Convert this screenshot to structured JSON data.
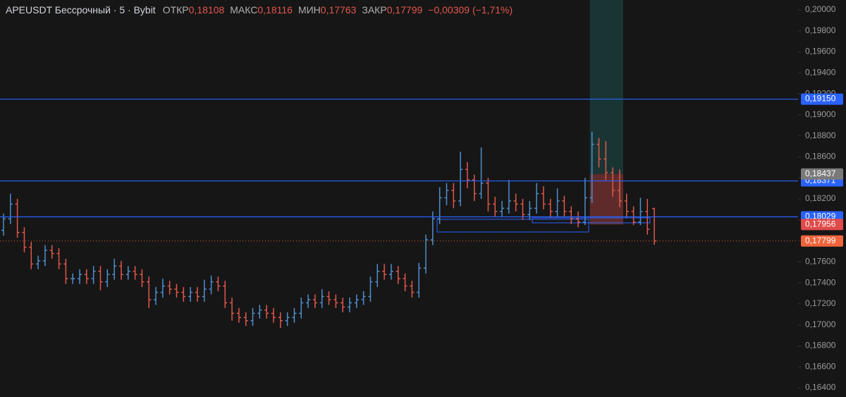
{
  "chart_data": {
    "type": "ohlc",
    "header": {
      "symbol": "APEUSDT Бессрочный · 5 · Bybit",
      "fields": [
        {
          "name": "ОТКР",
          "value": 0.18108,
          "label": "0,18108"
        },
        {
          "name": "МАКС",
          "value": 0.18116,
          "label": "0,18116"
        },
        {
          "name": "МИН",
          "value": 0.17763,
          "label": "0,17763"
        },
        {
          "name": "ЗАКР",
          "value": 0.17799,
          "label": "0,17799"
        }
      ],
      "change": {
        "value": -0.00309,
        "label": "−0,00309 (−1,71%)"
      }
    },
    "up_color": "#4f8fcf",
    "down_color": "#e2574c",
    "ylim": [
      0.16313,
      0.20094
    ],
    "yticks": [
      {
        "value": 0.164,
        "label": "0,16400"
      },
      {
        "value": 0.166,
        "label": "0,16600"
      },
      {
        "value": 0.168,
        "label": "0,16800"
      },
      {
        "value": 0.17,
        "label": "0,17000"
      },
      {
        "value": 0.172,
        "label": "0,17200"
      },
      {
        "value": 0.174,
        "label": "0,17400"
      },
      {
        "value": 0.176,
        "label": "0,17600"
      },
      {
        "value": 0.178,
        "label": "0,17800"
      },
      {
        "value": 0.18,
        "label": "0,18000"
      },
      {
        "value": 0.182,
        "label": "0,18200"
      },
      {
        "value": 0.184,
        "label": "0,18400"
      },
      {
        "value": 0.186,
        "label": "0,18600"
      },
      {
        "value": 0.188,
        "label": "0,18800"
      },
      {
        "value": 0.19,
        "label": "0,19000"
      },
      {
        "value": 0.192,
        "label": "0,19200"
      },
      {
        "value": 0.194,
        "label": "0,19400"
      },
      {
        "value": 0.196,
        "label": "0,19600"
      },
      {
        "value": 0.198,
        "label": "0,19800"
      },
      {
        "value": 0.2,
        "label": "0,20000"
      }
    ],
    "open": [
      0.179,
      0.1801,
      0.1815,
      0.1788,
      0.1774,
      0.1758,
      0.1761,
      0.1771,
      0.1768,
      0.1758,
      0.1744,
      0.1744,
      0.1748,
      0.1744,
      0.1751,
      0.1741,
      0.1748,
      0.1756,
      0.1748,
      0.1751,
      0.1748,
      0.1741,
      0.1724,
      0.1731,
      0.1737,
      0.1734,
      0.1731,
      0.1727,
      0.1731,
      0.1727,
      0.1734,
      0.1741,
      0.1737,
      0.1721,
      0.1711,
      0.1707,
      0.1704,
      0.1711,
      0.1714,
      0.1711,
      0.1707,
      0.1704,
      0.1707,
      0.1711,
      0.1721,
      0.1724,
      0.1721,
      0.1727,
      0.1724,
      0.1721,
      0.1717,
      0.1721,
      0.1724,
      0.1727,
      0.1741,
      0.1751,
      0.1748,
      0.1751,
      0.1744,
      0.1737,
      0.1731,
      0.1754,
      0.1781,
      0.1801,
      0.1821,
      0.1828,
      0.1818,
      0.1848,
      0.1838,
      0.1825,
      0.1835,
      0.1815,
      0.1808,
      0.1811,
      0.1818,
      0.1815,
      0.1805,
      0.1811,
      0.1825,
      0.1815,
      0.1808,
      0.1818,
      0.1808,
      0.1801,
      0.1798,
      0.1821,
      0.1872,
      0.1858,
      0.1845,
      0.1828,
      0.1818,
      0.1808,
      0.1798,
      0.1808,
      0.18108
    ],
    "high": [
      0.1806,
      0.1825,
      0.182,
      0.1793,
      0.1779,
      0.1766,
      0.1776,
      0.1776,
      0.1773,
      0.1763,
      0.1749,
      0.1753,
      0.1753,
      0.1756,
      0.1756,
      0.1753,
      0.1763,
      0.1761,
      0.1756,
      0.1756,
      0.1753,
      0.1746,
      0.1736,
      0.1744,
      0.1742,
      0.1739,
      0.1736,
      0.1736,
      0.1736,
      0.1743,
      0.1747,
      0.1746,
      0.1742,
      0.1726,
      0.1716,
      0.1712,
      0.1716,
      0.1719,
      0.1719,
      0.1716,
      0.1712,
      0.1712,
      0.1716,
      0.1726,
      0.1729,
      0.1729,
      0.1734,
      0.1732,
      0.1729,
      0.1726,
      0.1726,
      0.1729,
      0.1732,
      0.1746,
      0.1758,
      0.1758,
      0.1758,
      0.1756,
      0.1749,
      0.1742,
      0.1759,
      0.1786,
      0.1808,
      0.1831,
      0.1835,
      0.1835,
      0.1865,
      0.1855,
      0.1843,
      0.1869,
      0.184,
      0.1822,
      0.1818,
      0.1838,
      0.1825,
      0.182,
      0.1818,
      0.1835,
      0.1832,
      0.182,
      0.183,
      0.1823,
      0.1813,
      0.1808,
      0.184,
      0.1884,
      0.1878,
      0.1875,
      0.185,
      0.1848,
      0.1825,
      0.1813,
      0.1821,
      0.182,
      0.18116
    ],
    "low": [
      0.1785,
      0.1796,
      0.1783,
      0.1769,
      0.1753,
      0.1753,
      0.1756,
      0.1763,
      0.1753,
      0.1739,
      0.1739,
      0.1739,
      0.1739,
      0.1739,
      0.1733,
      0.1736,
      0.1743,
      0.1743,
      0.1743,
      0.1743,
      0.1736,
      0.1716,
      0.1719,
      0.1726,
      0.1729,
      0.1726,
      0.1722,
      0.1722,
      0.1722,
      0.1722,
      0.1729,
      0.1732,
      0.1716,
      0.1704,
      0.1702,
      0.1699,
      0.1699,
      0.1706,
      0.1706,
      0.1702,
      0.1697,
      0.1699,
      0.1702,
      0.1706,
      0.1716,
      0.1716,
      0.1716,
      0.1719,
      0.1716,
      0.1712,
      0.1712,
      0.1716,
      0.1719,
      0.1722,
      0.1736,
      0.1743,
      0.1743,
      0.1739,
      0.1732,
      0.1726,
      0.1726,
      0.1749,
      0.1776,
      0.1796,
      0.1814,
      0.1811,
      0.1813,
      0.183,
      0.1818,
      0.182,
      0.1808,
      0.1803,
      0.1803,
      0.1806,
      0.1808,
      0.18,
      0.18,
      0.1806,
      0.181,
      0.1802,
      0.1803,
      0.1803,
      0.1796,
      0.1793,
      0.1795,
      0.1816,
      0.185,
      0.1838,
      0.1822,
      0.1812,
      0.1802,
      0.1795,
      0.1795,
      0.1786,
      0.17763
    ],
    "close": [
      0.1801,
      0.1815,
      0.1788,
      0.1774,
      0.1758,
      0.1761,
      0.1771,
      0.1768,
      0.1758,
      0.1744,
      0.1744,
      0.1748,
      0.1744,
      0.1751,
      0.1741,
      0.1748,
      0.1756,
      0.1748,
      0.1751,
      0.1748,
      0.1741,
      0.1724,
      0.1731,
      0.1737,
      0.1734,
      0.1731,
      0.1727,
      0.1731,
      0.1727,
      0.1734,
      0.1741,
      0.1737,
      0.1721,
      0.1711,
      0.1707,
      0.1704,
      0.1711,
      0.1714,
      0.1711,
      0.1707,
      0.1704,
      0.1707,
      0.1711,
      0.1721,
      0.1724,
      0.1721,
      0.1727,
      0.1724,
      0.1721,
      0.1717,
      0.1721,
      0.1724,
      0.1727,
      0.1741,
      0.1751,
      0.1748,
      0.1751,
      0.1744,
      0.1737,
      0.1731,
      0.1754,
      0.1781,
      0.1801,
      0.1821,
      0.1828,
      0.1818,
      0.1848,
      0.1838,
      0.1825,
      0.1835,
      0.1815,
      0.1808,
      0.1811,
      0.1818,
      0.1815,
      0.1805,
      0.1811,
      0.1825,
      0.1815,
      0.1808,
      0.1818,
      0.1808,
      0.1801,
      0.1798,
      0.1821,
      0.1872,
      0.1858,
      0.1845,
      0.1828,
      0.1818,
      0.1808,
      0.1798,
      0.1808,
      0.1791,
      0.17799
    ],
    "hlines": [
      {
        "value": 0.1915,
        "label": "0,19150",
        "color": "#2962ff"
      },
      {
        "value": 0.18371,
        "label": "0,18371",
        "color": "#2962ff"
      },
      {
        "value": 0.18029,
        "label": "0,18029",
        "color": "#2962ff"
      }
    ],
    "position": {
      "entry": {
        "value": 0.18437,
        "label": "0,18437",
        "color": "#7a7a7a"
      },
      "stop": {
        "value": 0.17956,
        "label": "0,17956",
        "color": "#e04a4a"
      }
    },
    "last_price": {
      "value": 0.17799,
      "label": "0,17799",
      "color": "#f0643c"
    }
  }
}
